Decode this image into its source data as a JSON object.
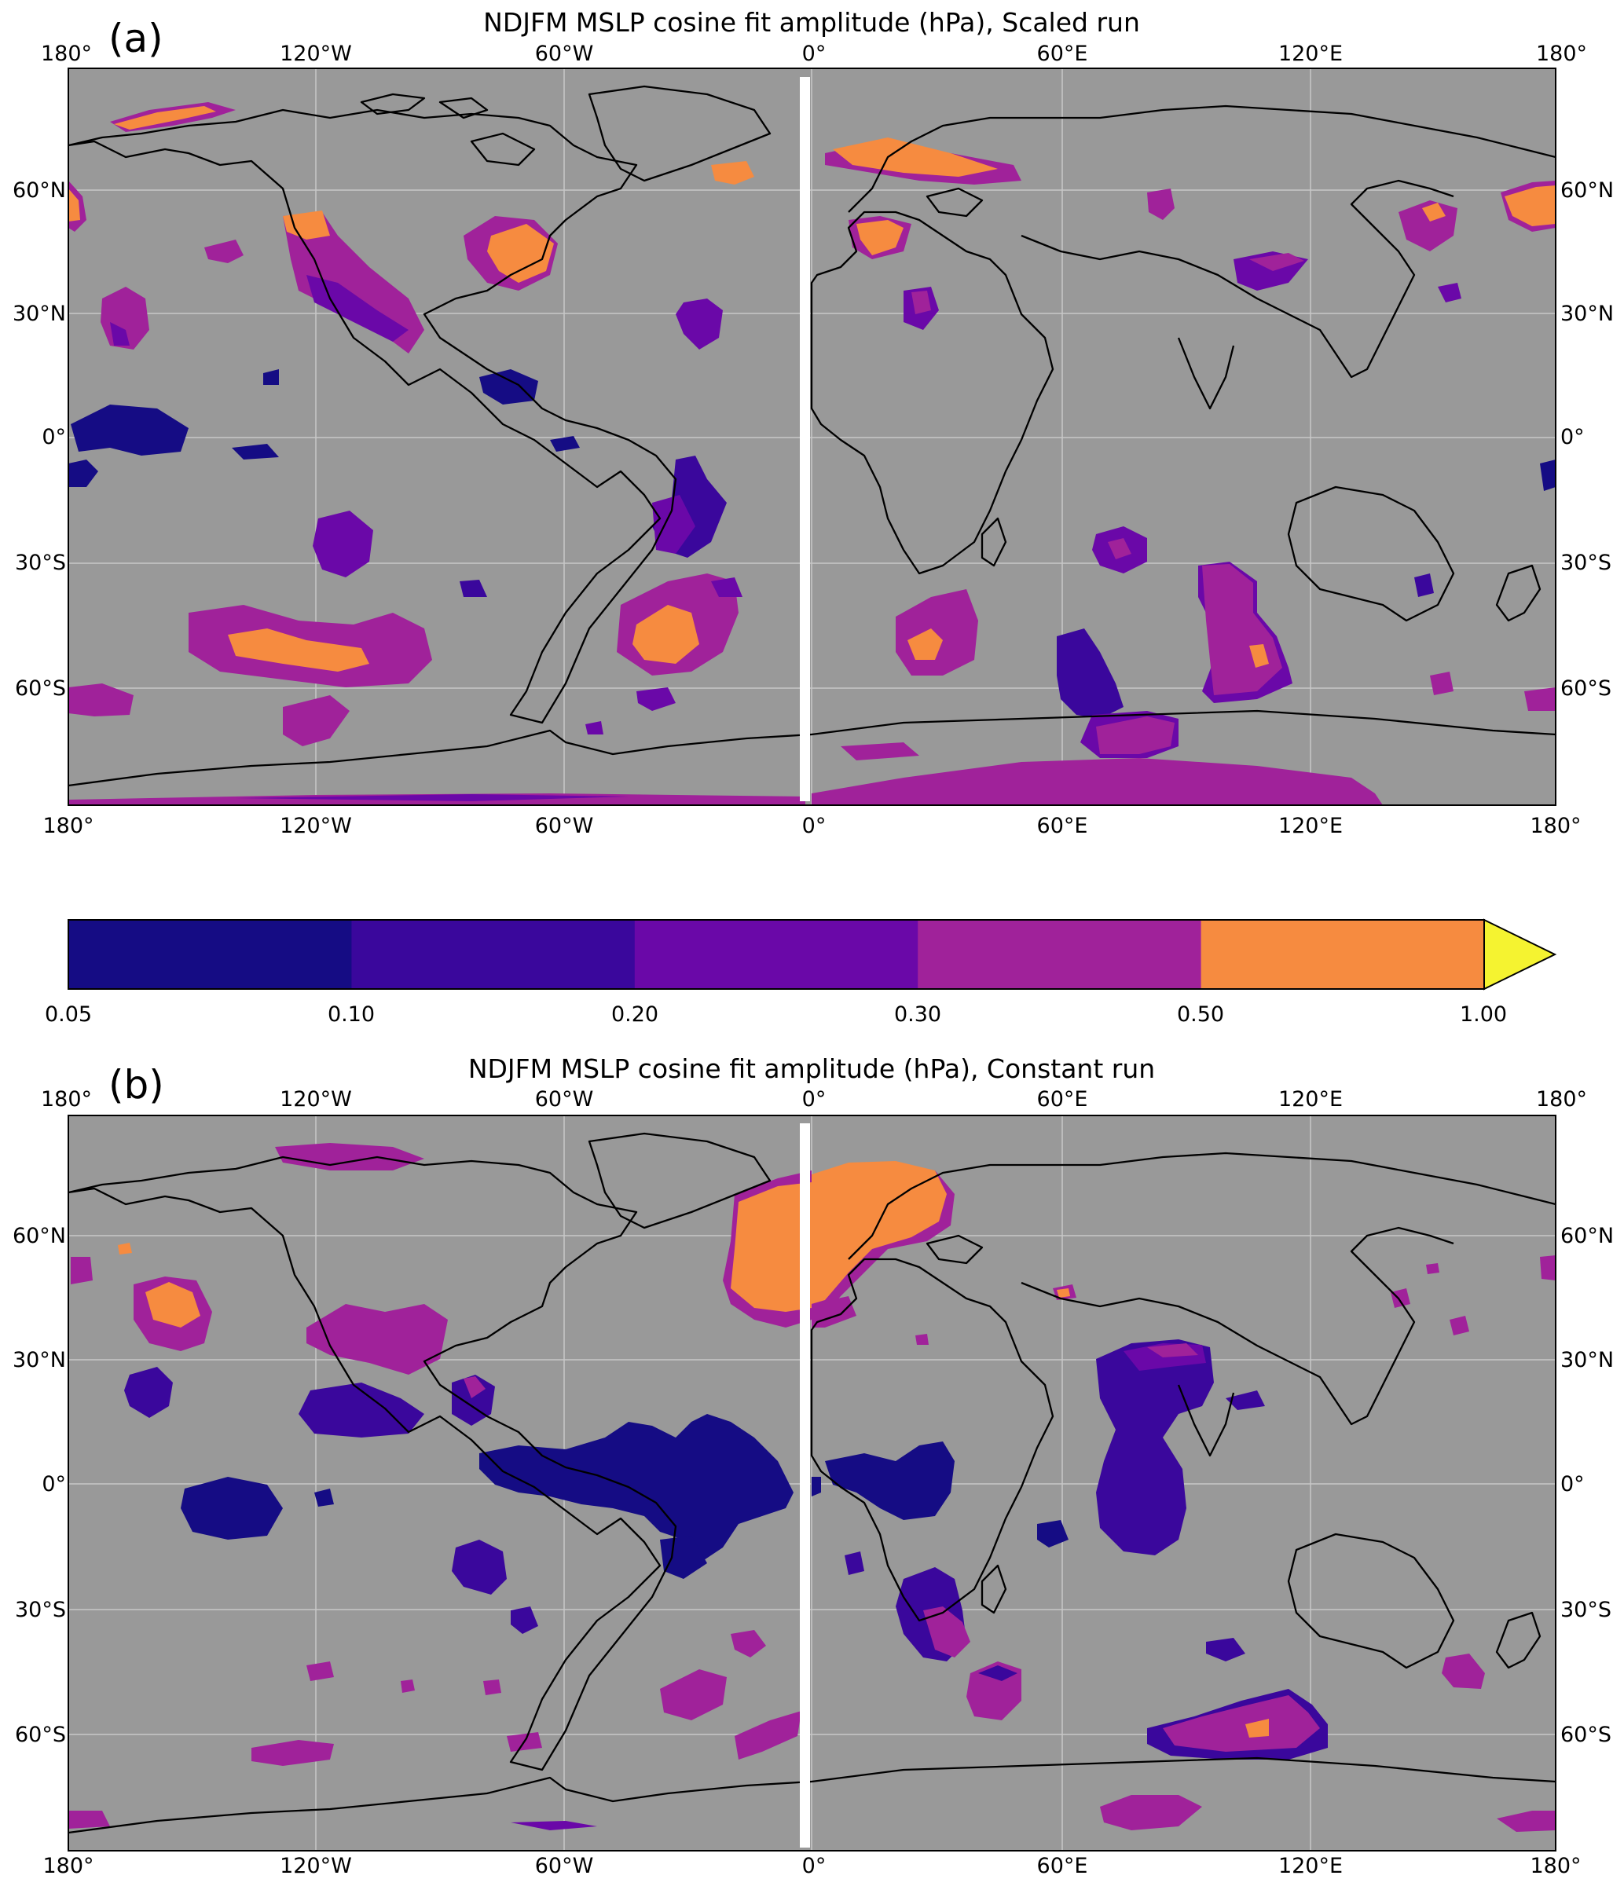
{
  "panels": [
    {
      "label": "(a)",
      "title": "NDJFM MSLP cosine fit amplitude (hPa), Scaled run",
      "lon_ticks": [
        "180°",
        "120°W",
        "60°W",
        "0°",
        "60°E",
        "120°E",
        "180°"
      ],
      "lat_ticks": [
        "60°N",
        "30°N",
        "0°",
        "30°S",
        "60°S"
      ]
    },
    {
      "label": "(b)",
      "title": "NDJFM MSLP cosine fit amplitude (hPa), Constant run",
      "lon_ticks": [
        "180°",
        "120°W",
        "60°W",
        "0°",
        "60°E",
        "120°E",
        "180°"
      ],
      "lat_ticks": [
        "60°N",
        "30°N",
        "0°",
        "30°S",
        "60°S"
      ]
    }
  ],
  "colorbar": {
    "ticks": [
      "0.05",
      "0.10",
      "0.20",
      "0.30",
      "0.50",
      "1.00"
    ],
    "colors": [
      "#150c84",
      "#3a079c",
      "#6a08a8",
      "#a0229a",
      "#f68b40",
      "#f5f330"
    ],
    "extend": "max"
  },
  "map_colors": {
    "background": "#999999",
    "coast": "#000000",
    "grid": "#c8c8c8"
  }
}
